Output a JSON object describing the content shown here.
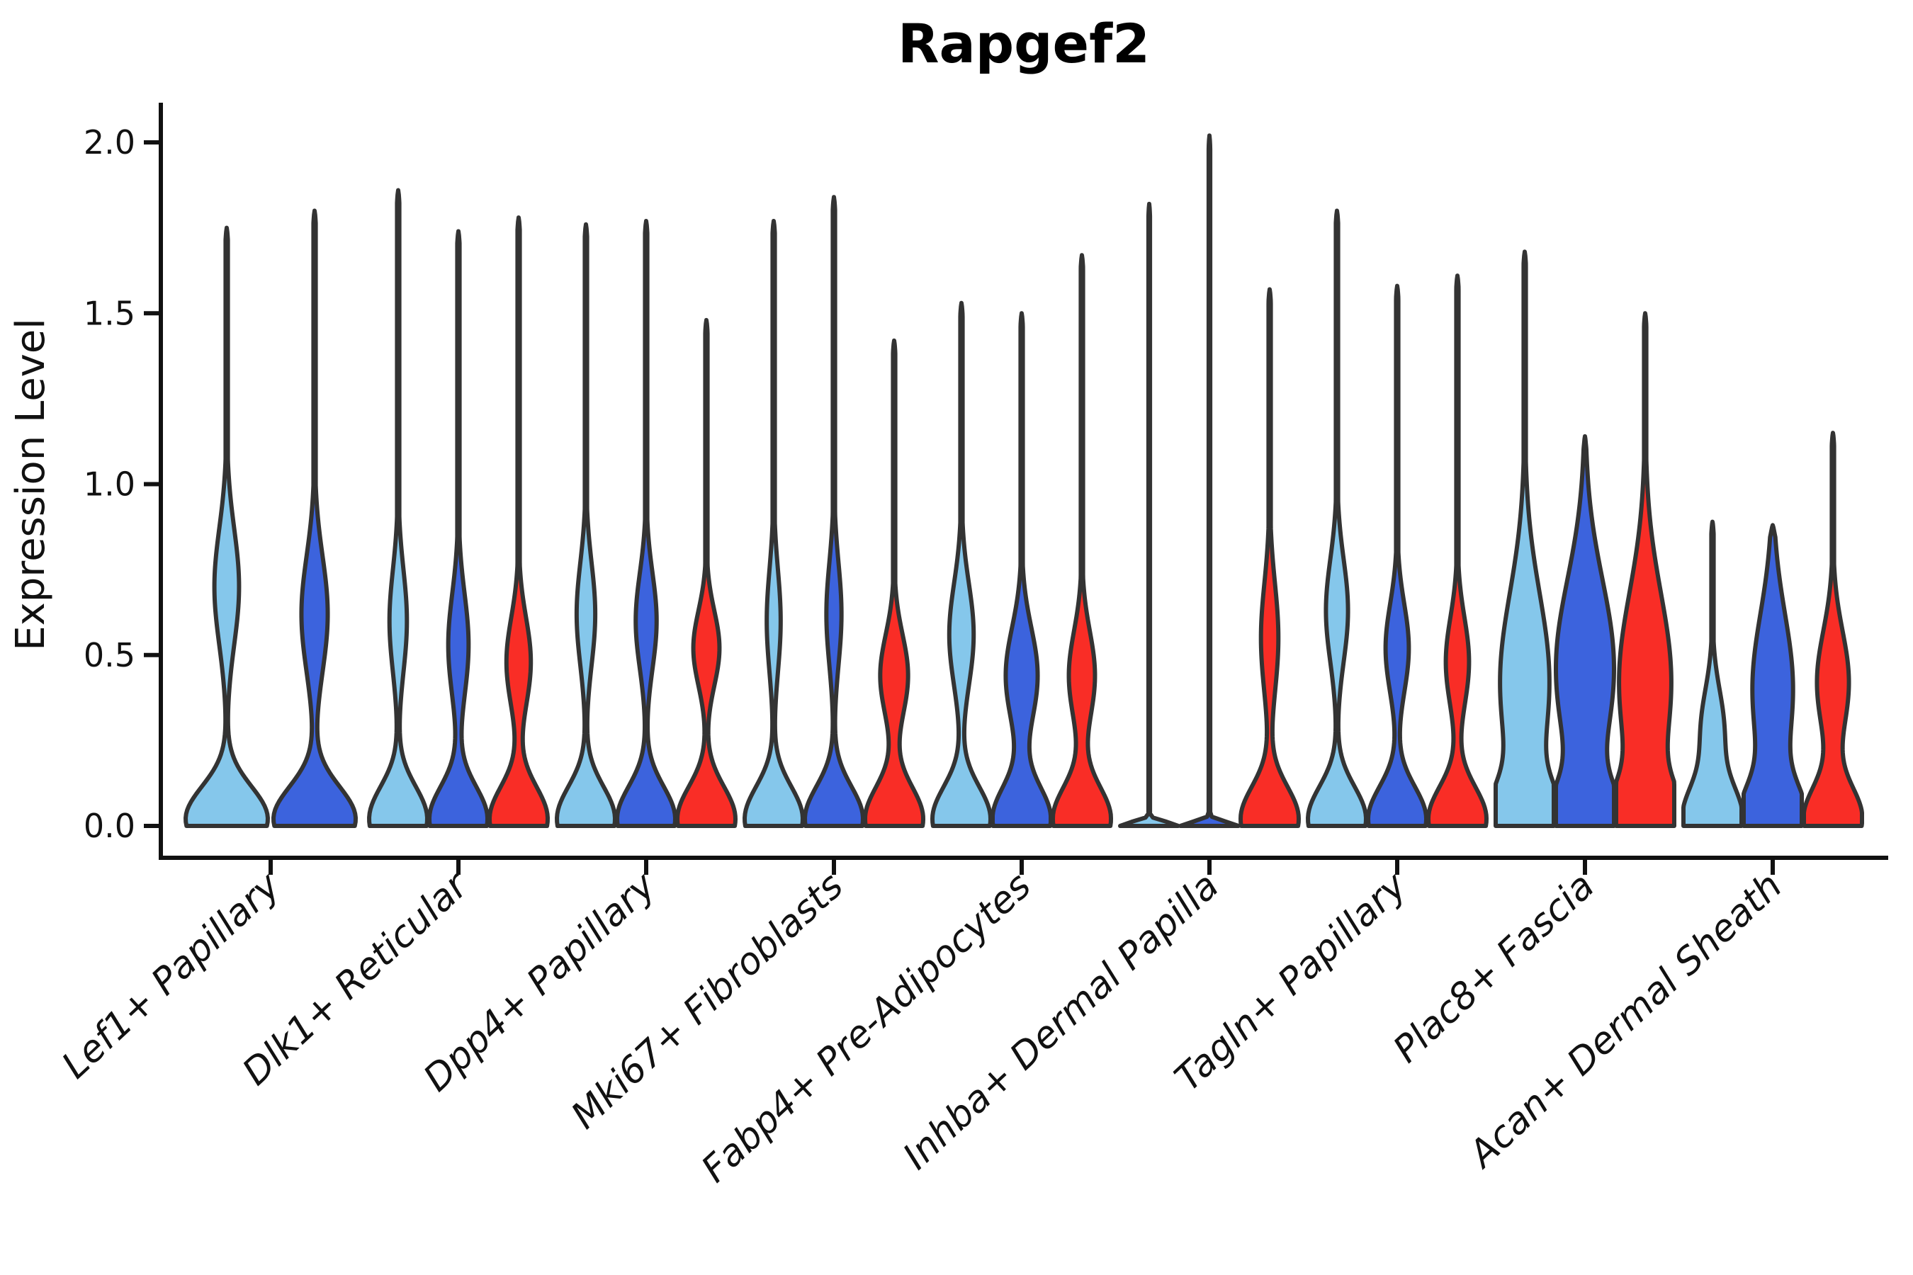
{
  "title": "Rapgef2",
  "axes": {
    "y_label": "Expression Level",
    "y_tick_labels": [
      "0.0",
      "0.5",
      "1.0",
      "1.5",
      "2.0"
    ]
  },
  "chart_data": {
    "type": "violin",
    "title": "Rapgef2",
    "xlabel": "",
    "ylabel": "Expression Level",
    "ylim": [
      0,
      2.02
    ],
    "y_ticks": [
      0.0,
      0.5,
      1.0,
      1.5,
      2.0
    ],
    "grid": false,
    "legend": "none",
    "x_tick_rotation_deg": 43,
    "categories": [
      "Lef1+ Papillary",
      "Dlk1+ Reticular",
      "Dpp4+ Papillary",
      "Mki67+ Fibroblasts",
      "Fabp4+ Pre-Adipocytes",
      "Inhba+ Dermal Papilla",
      "Tagln+ Papillary",
      "Plac8+ Fascia",
      "Acan+ Dermal Sheath"
    ],
    "palette": {
      "light-blue": "#85C7EB",
      "dark-blue": "#3C63DD",
      "red": "#F92D26"
    },
    "outline_color": "#333333",
    "groups": [
      {
        "category": "Lef1+ Papillary",
        "violins": [
          {
            "color": "light-blue",
            "peak": 1.75,
            "bulge": {
              "amp": 0.3,
              "center": 0.7,
              "spread": 0.17
            }
          },
          {
            "color": "dark-blue",
            "peak": 1.8,
            "bulge": {
              "amp": 0.32,
              "center": 0.62,
              "spread": 0.17
            }
          }
        ]
      },
      {
        "category": "Dlk1+ Reticular",
        "violins": [
          {
            "color": "light-blue",
            "peak": 1.86,
            "bulge": {
              "amp": 0.3,
              "center": 0.6,
              "spread": 0.15
            }
          },
          {
            "color": "dark-blue",
            "peak": 1.74,
            "bulge": {
              "amp": 0.35,
              "center": 0.53,
              "spread": 0.15
            }
          },
          {
            "color": "red",
            "peak": 1.78,
            "bulge": {
              "amp": 0.42,
              "center": 0.48,
              "spread": 0.13
            }
          }
        ]
      },
      {
        "category": "Dpp4+ Papillary",
        "violins": [
          {
            "color": "light-blue",
            "peak": 1.76,
            "bulge": {
              "amp": 0.32,
              "center": 0.62,
              "spread": 0.15
            }
          },
          {
            "color": "dark-blue",
            "peak": 1.77,
            "bulge": {
              "amp": 0.36,
              "center": 0.6,
              "spread": 0.14
            }
          },
          {
            "color": "red",
            "peak": 1.48,
            "bulge": {
              "amp": 0.45,
              "center": 0.52,
              "spread": 0.11
            }
          }
        ]
      },
      {
        "category": "Mki67+ Fibroblasts",
        "violins": [
          {
            "color": "light-blue",
            "peak": 1.77,
            "bulge": {
              "amp": 0.24,
              "center": 0.6,
              "spread": 0.15
            }
          },
          {
            "color": "dark-blue",
            "peak": 1.84,
            "bulge": {
              "amp": 0.26,
              "center": 0.62,
              "spread": 0.15
            }
          },
          {
            "color": "red",
            "peak": 1.42,
            "bulge": {
              "amp": 0.48,
              "center": 0.44,
              "spread": 0.12
            }
          }
        ]
      },
      {
        "category": "Fabp4+ Pre-Adipocytes",
        "violins": [
          {
            "color": "light-blue",
            "peak": 1.53,
            "bulge": {
              "amp": 0.42,
              "center": 0.56,
              "spread": 0.15
            }
          },
          {
            "color": "dark-blue",
            "peak": 1.5,
            "bulge": {
              "amp": 0.55,
              "center": 0.44,
              "spread": 0.14
            }
          },
          {
            "color": "red",
            "peak": 1.67,
            "bulge": {
              "amp": 0.45,
              "center": 0.44,
              "spread": 0.13
            }
          }
        ]
      },
      {
        "category": "Inhba+ Dermal Papilla",
        "violins": [
          {
            "color": "light-blue",
            "peak": 1.82,
            "hairline": true,
            "bulge": {
              "amp": 0.0,
              "center": 0.5,
              "spread": 0.2
            }
          },
          {
            "color": "dark-blue",
            "peak": 2.02,
            "hairline": true,
            "bulge": {
              "amp": 0.0,
              "center": 0.5,
              "spread": 0.2
            }
          },
          {
            "color": "red",
            "peak": 1.57,
            "bulge": {
              "amp": 0.3,
              "center": 0.55,
              "spread": 0.16
            }
          }
        ]
      },
      {
        "category": "Tagln+ Papillary",
        "violins": [
          {
            "color": "light-blue",
            "peak": 1.8,
            "bulge": {
              "amp": 0.38,
              "center": 0.63,
              "spread": 0.15
            }
          },
          {
            "color": "dark-blue",
            "peak": 1.58,
            "bulge": {
              "amp": 0.4,
              "center": 0.52,
              "spread": 0.13
            }
          },
          {
            "color": "red",
            "peak": 1.61,
            "bulge": {
              "amp": 0.4,
              "center": 0.48,
              "spread": 0.13
            }
          }
        ]
      },
      {
        "category": "Plac8+ Fascia",
        "violins": [
          {
            "color": "light-blue",
            "peak": 1.68,
            "bulge": {
              "amp": 0.85,
              "center": 0.42,
              "spread": 0.26
            }
          },
          {
            "color": "dark-blue",
            "peak": 1.14,
            "bulge": {
              "amp": 1.0,
              "center": 0.46,
              "spread": 0.26
            }
          },
          {
            "color": "red",
            "peak": 1.5,
            "bulge": {
              "amp": 0.9,
              "center": 0.42,
              "spread": 0.26
            }
          }
        ]
      },
      {
        "category": "Acan+ Dermal Sheath",
        "violins": [
          {
            "color": "light-blue",
            "peak": 0.89,
            "bulge": {
              "amp": 0.4,
              "center": 0.28,
              "spread": 0.12
            }
          },
          {
            "color": "dark-blue",
            "peak": 0.88,
            "bulge": {
              "amp": 0.7,
              "center": 0.4,
              "spread": 0.22
            }
          },
          {
            "color": "red",
            "peak": 1.15,
            "bulge": {
              "amp": 0.55,
              "center": 0.42,
              "spread": 0.15
            }
          }
        ]
      }
    ]
  }
}
